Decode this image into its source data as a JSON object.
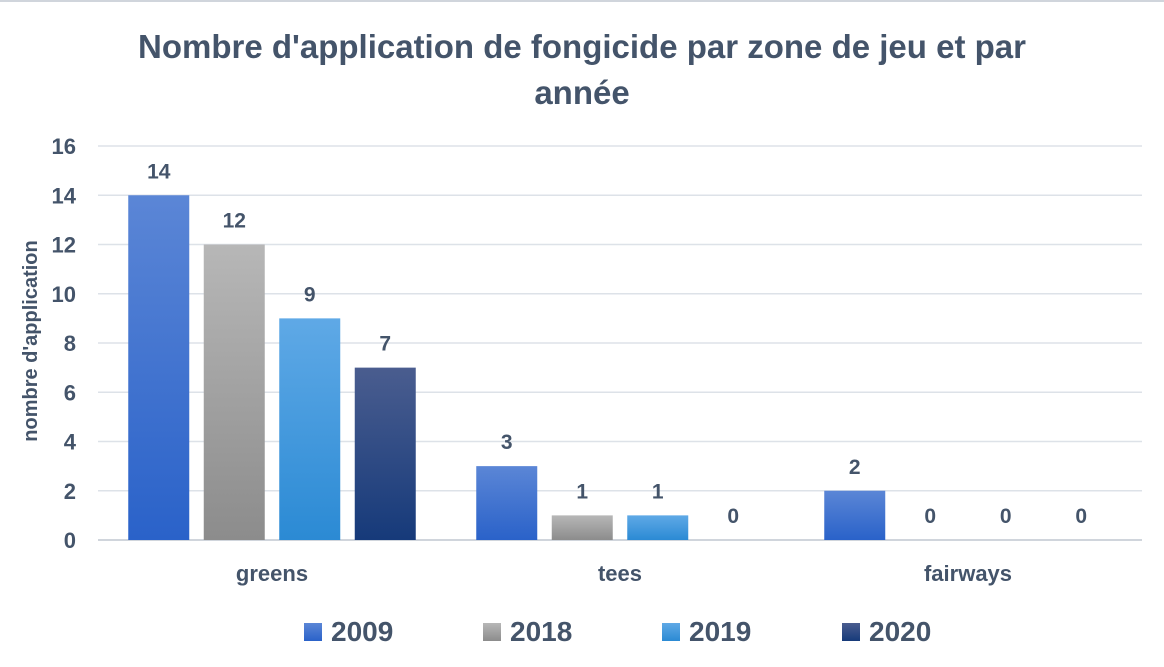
{
  "chart_data": {
    "type": "bar",
    "title_lines": [
      "Nombre d'application de fongicide par zone de jeu et par",
      "année"
    ],
    "xlabel": "",
    "ylabel": "nombre d'application",
    "ylim": [
      0,
      16
    ],
    "yticks": [
      0,
      2,
      4,
      6,
      8,
      10,
      12,
      14,
      16
    ],
    "grid": true,
    "legend_position": "bottom",
    "categories": [
      "greens",
      "tees",
      "fairways"
    ],
    "series": [
      {
        "name": "2009",
        "values": [
          14,
          3,
          2
        ],
        "color_top": "#5b86d6",
        "color_bottom": "#2a62c9"
      },
      {
        "name": "2018",
        "values": [
          12,
          1,
          0
        ],
        "color_top": "#b7b7b7",
        "color_bottom": "#8c8c8c"
      },
      {
        "name": "2019",
        "values": [
          9,
          1,
          0
        ],
        "color_top": "#5fa9e6",
        "color_bottom": "#2b8ad4"
      },
      {
        "name": "2020",
        "values": [
          7,
          0,
          0
        ],
        "color_top": "#4a5d8f",
        "color_bottom": "#163a7a"
      }
    ]
  }
}
